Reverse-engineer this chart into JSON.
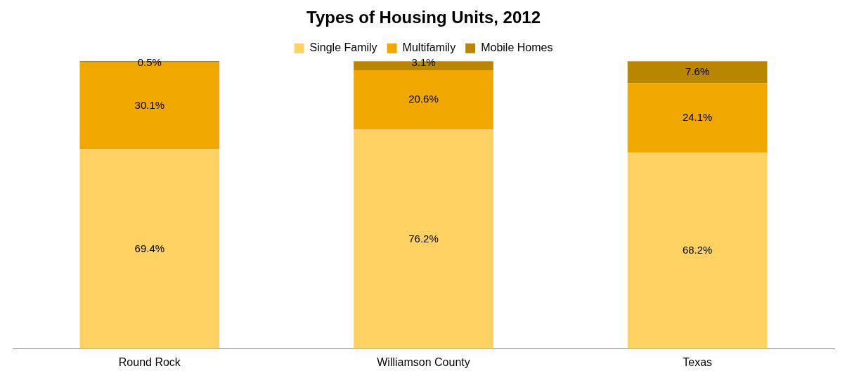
{
  "chart_data": {
    "type": "bar",
    "title": "Types of Housing Units, 2012",
    "categories": [
      "Round Rock",
      "Williamson County",
      "Texas"
    ],
    "stacked": true,
    "legend": "top",
    "grid": false,
    "series": [
      {
        "name": "Single Family",
        "color": "#fdd262",
        "values": [
          69.4,
          76.2,
          68.2
        ],
        "value_labels": [
          "69.4%",
          "76.2%",
          "68.2%"
        ]
      },
      {
        "name": "Multifamily",
        "color": "#f0a800",
        "values": [
          30.1,
          20.6,
          24.1
        ],
        "value_labels": [
          "30.1%",
          "20.6%",
          "24.1%"
        ]
      },
      {
        "name": "Mobile Homes",
        "color": "#b88600",
        "values": [
          0.5,
          3.1,
          7.6
        ],
        "value_labels": [
          "0.5%",
          "3.1%",
          "7.6%"
        ]
      }
    ]
  }
}
